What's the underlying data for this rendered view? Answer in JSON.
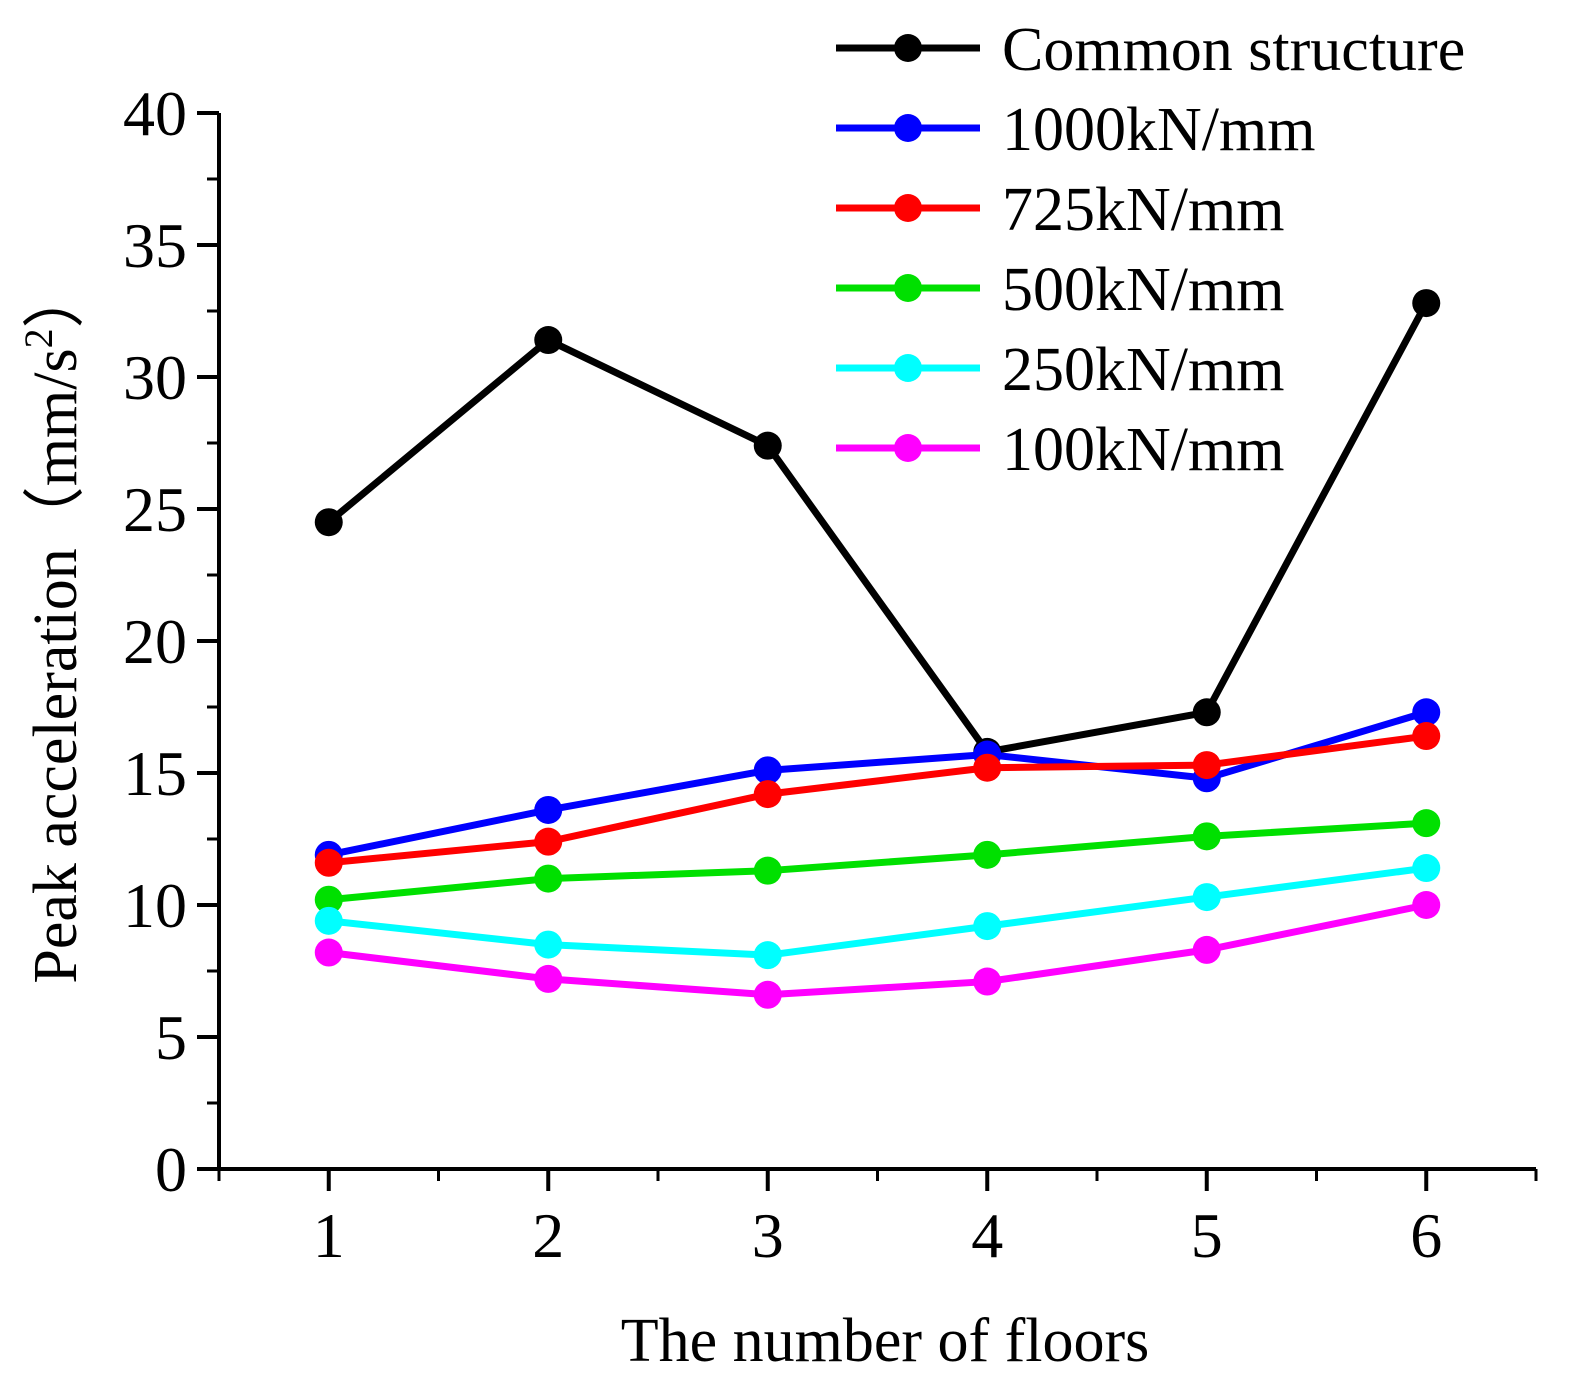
{
  "chart_data": {
    "type": "line",
    "xlabel": "The number of floors",
    "ylabel": "Peak acceleration（mm/s",
    "ylabel_sup": "2",
    "ylabel_close": "）",
    "x": [
      1,
      2,
      3,
      4,
      5,
      6
    ],
    "xlim": [
      0.5,
      6.5
    ],
    "ylim": [
      0,
      40
    ],
    "xticks": [
      1,
      2,
      3,
      4,
      5,
      6
    ],
    "yticks": [
      0,
      5,
      10,
      15,
      20,
      25,
      30,
      35,
      40
    ],
    "legend": "top-right",
    "grid": false,
    "series": [
      {
        "name": "Common structure",
        "color": "#000000",
        "values": [
          24.5,
          31.4,
          27.4,
          15.8,
          17.3,
          32.8
        ]
      },
      {
        "name": "1000kN/mm",
        "color": "#0000ff",
        "values": [
          11.9,
          13.6,
          15.1,
          15.7,
          14.8,
          17.3
        ]
      },
      {
        "name": "725kN/mm",
        "color": "#ff0000",
        "values": [
          11.6,
          12.4,
          14.2,
          15.2,
          15.3,
          16.4
        ]
      },
      {
        "name": "500kN/mm",
        "color": "#00e000",
        "values": [
          10.2,
          11.0,
          11.3,
          11.9,
          12.6,
          13.1
        ]
      },
      {
        "name": "250kN/mm",
        "color": "#00ffff",
        "values": [
          9.4,
          8.5,
          8.1,
          9.2,
          10.3,
          11.4
        ]
      },
      {
        "name": "100kN/mm",
        "color": "#ff00ff",
        "values": [
          8.2,
          7.2,
          6.6,
          7.1,
          8.3,
          10.0
        ]
      }
    ]
  }
}
